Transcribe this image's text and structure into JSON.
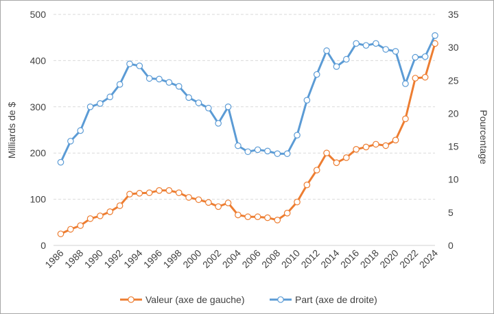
{
  "chart_data": {
    "type": "line",
    "x": [
      1986,
      1987,
      1988,
      1989,
      1990,
      1991,
      1992,
      1993,
      1994,
      1995,
      1996,
      1997,
      1998,
      1999,
      2000,
      2001,
      2002,
      2003,
      2004,
      2005,
      2006,
      2007,
      2008,
      2009,
      2010,
      2011,
      2012,
      2013,
      2014,
      2015,
      2016,
      2017,
      2018,
      2019,
      2020,
      2021,
      2022,
      2023,
      2024
    ],
    "x_tick_labels": [
      "1986",
      "1988",
      "1990",
      "1992",
      "1994",
      "1996",
      "1998",
      "2000",
      "2002",
      "2004",
      "2006",
      "2008",
      "2010",
      "2012",
      "2014",
      "2016",
      "2018",
      "2020",
      "2022",
      "2024"
    ],
    "y_left": {
      "label": "Milliards de $",
      "range": [
        0,
        500
      ],
      "ticks": [
        "0",
        "100",
        "200",
        "300",
        "400",
        "500"
      ]
    },
    "y_right": {
      "label": "Pourcentage",
      "range": [
        0,
        35
      ],
      "ticks": [
        "0",
        "5",
        "10",
        "15",
        "20",
        "25",
        "30",
        "35"
      ]
    },
    "grid": true,
    "legend_position": "bottom",
    "series": [
      {
        "name": "Valeur (axe de gauche)",
        "axis": "left",
        "color": "#ED7D31",
        "values": [
          25,
          35,
          43,
          58,
          64,
          73,
          86,
          111,
          113,
          114,
          119,
          119,
          114,
          104,
          99,
          93,
          84,
          92,
          66,
          62,
          62,
          60,
          55,
          70,
          94,
          131,
          163,
          200,
          179,
          190,
          208,
          213,
          219,
          216,
          228,
          274,
          362,
          364,
          437
        ]
      },
      {
        "name": "Part (axe de droite)",
        "axis": "right",
        "color": "#5B9BD5",
        "values": [
          12.6,
          15.8,
          17.4,
          21.0,
          21.5,
          22.5,
          24.4,
          27.5,
          27.2,
          25.3,
          25.2,
          24.7,
          24.1,
          22.4,
          21.6,
          20.8,
          18.5,
          21.0,
          15.1,
          14.2,
          14.5,
          14.3,
          13.9,
          13.9,
          16.7,
          22.0,
          25.9,
          29.5,
          27.1,
          28.2,
          30.6,
          30.3,
          30.6,
          29.7,
          29.4,
          24.5,
          28.5,
          28.6,
          31.8
        ]
      }
    ]
  }
}
